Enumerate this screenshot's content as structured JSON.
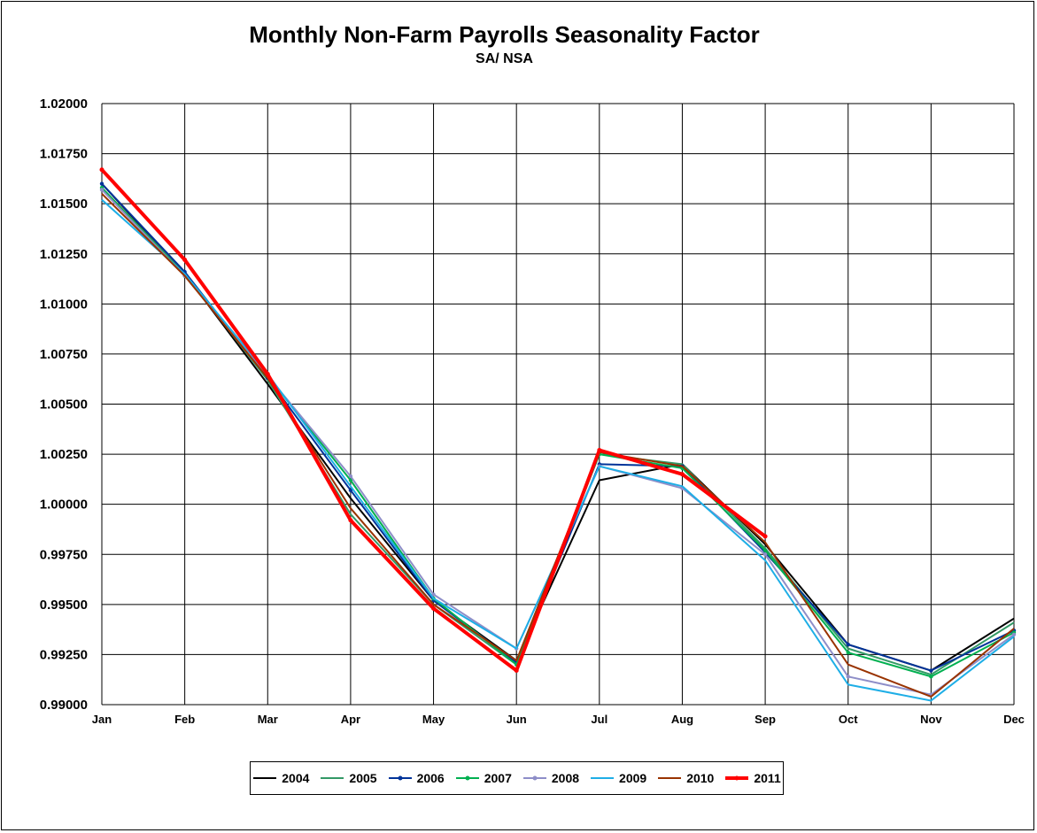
{
  "chart_data": {
    "type": "line",
    "title": "Monthly Non-Farm Payrolls Seasonality Factor",
    "subtitle": "SA/ NSA",
    "xlabel": "",
    "ylabel": "",
    "categories": [
      "Jan",
      "Feb",
      "Mar",
      "Apr",
      "May",
      "Jun",
      "Jul",
      "Aug",
      "Sep",
      "Oct",
      "Nov",
      "Dec"
    ],
    "ylim": [
      0.99,
      1.02
    ],
    "yticks": [
      "0.99000",
      "0.99250",
      "0.99500",
      "0.99750",
      "1.00000",
      "1.00250",
      "1.00500",
      "1.00750",
      "1.01000",
      "1.01250",
      "1.01500",
      "1.01750",
      "1.02000"
    ],
    "grid": true,
    "legend_position": "bottom",
    "series": [
      {
        "name": "2004",
        "color": "#000000",
        "marker": false,
        "values": [
          1.016,
          1.0115,
          1.006,
          1.0003,
          0.9952,
          0.9922,
          1.0012,
          1.002,
          0.998,
          0.993,
          0.9917,
          0.9943
        ]
      },
      {
        "name": "2005",
        "color": "#339966",
        "marker": false,
        "values": [
          1.0158,
          1.0115,
          1.0062,
          0.9995,
          0.995,
          0.992,
          1.0025,
          1.002,
          0.9978,
          0.9928,
          0.9915,
          0.9941
        ]
      },
      {
        "name": "2006",
        "color": "#003399",
        "marker": true,
        "values": [
          1.016,
          1.0116,
          1.0063,
          1.0007,
          0.9952,
          0.9921,
          1.002,
          1.0019,
          0.9976,
          0.993,
          0.9917,
          0.9937
        ]
      },
      {
        "name": "2007",
        "color": "#00B050",
        "marker": true,
        "values": [
          1.0158,
          1.0114,
          1.0064,
          1.0012,
          0.9953,
          0.992,
          1.0025,
          1.0018,
          0.9977,
          0.9926,
          0.9914,
          0.9936
        ]
      },
      {
        "name": "2008",
        "color": "#8E8EC8",
        "marker": true,
        "values": [
          1.0157,
          1.0114,
          1.0064,
          1.0014,
          0.9955,
          0.9928,
          1.0019,
          1.0008,
          0.9975,
          0.9914,
          0.9905,
          0.9935
        ]
      },
      {
        "name": "2009",
        "color": "#1EAEE6",
        "marker": false,
        "values": [
          1.0152,
          1.0115,
          1.0065,
          1.0009,
          0.9953,
          0.9928,
          1.0019,
          1.0009,
          0.9972,
          0.991,
          0.9902,
          0.9934
        ]
      },
      {
        "name": "2010",
        "color": "#993300",
        "marker": false,
        "values": [
          1.0155,
          1.0114,
          1.0063,
          0.9998,
          0.995,
          0.9922,
          1.0026,
          1.0019,
          0.9981,
          0.992,
          0.9904,
          0.9938
        ]
      },
      {
        "name": "2011",
        "color": "#FF0000",
        "marker": true,
        "values": [
          1.0167,
          1.0122,
          1.0065,
          0.9992,
          0.9948,
          0.9917,
          1.0027,
          1.0015,
          0.9984,
          null,
          null,
          null
        ]
      }
    ]
  }
}
